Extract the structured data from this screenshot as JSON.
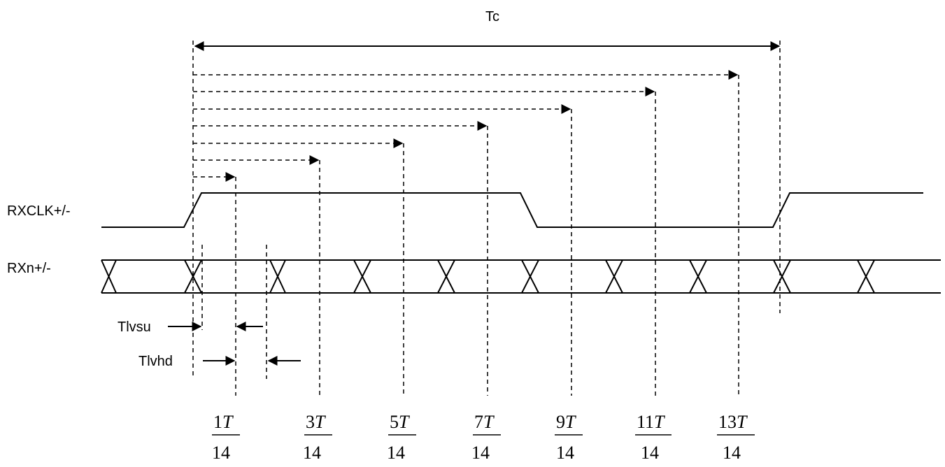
{
  "period_label": "Tc",
  "signals": {
    "clock": "RXCLK+/-",
    "data": "RXn+/-"
  },
  "timing": {
    "setup": "Tlvsu",
    "hold": "Tlvhd"
  },
  "fractions": [
    {
      "num": "1",
      "num_var": "T",
      "den": "14"
    },
    {
      "num": "3",
      "num_var": "T",
      "den": "14"
    },
    {
      "num": "5",
      "num_var": "T",
      "den": "14"
    },
    {
      "num": "7",
      "num_var": "T",
      "den": "14"
    },
    {
      "num": "9",
      "num_var": "T",
      "den": "14"
    },
    {
      "num": "11",
      "num_var": "T",
      "den": "14"
    },
    {
      "num": "13",
      "num_var": "T",
      "den": "14"
    }
  ]
}
